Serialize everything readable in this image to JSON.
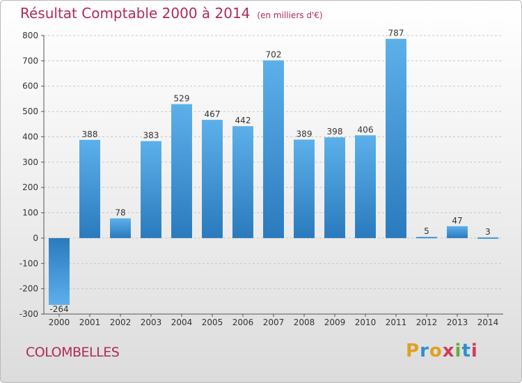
{
  "header": {
    "title": "Résultat Comptable 2000 à 2014",
    "subtitle": "(en milliers d'€)"
  },
  "footer": {
    "place": "COLOMBELLES",
    "logo_letters": [
      "P",
      "r",
      "o",
      "x",
      "i",
      "t",
      "i"
    ],
    "logo_colors": [
      "#e0a020",
      "#2c8fd0",
      "#e0a020",
      "#d23a5a",
      "#60b040",
      "#2c8fd0",
      "#d23a5a"
    ]
  },
  "chart_data": {
    "type": "bar",
    "title": "Résultat Comptable 2000 à 2014",
    "subtitle": "(en milliers d'€)",
    "categories": [
      "2000",
      "2001",
      "2002",
      "2003",
      "2004",
      "2005",
      "2006",
      "2007",
      "2008",
      "2009",
      "2010",
      "2011",
      "2012",
      "2013",
      "2014"
    ],
    "values": [
      -264,
      388,
      78,
      383,
      529,
      467,
      442,
      702,
      389,
      398,
      406,
      787,
      5,
      47,
      3
    ],
    "ylim": [
      -300,
      800
    ],
    "yticks": [
      -300,
      -200,
      -100,
      0,
      100,
      200,
      300,
      400,
      500,
      600,
      700,
      800
    ],
    "grid": true,
    "bar_color_light": "#5aaee8",
    "bar_color_dark": "#2a7cbf"
  }
}
